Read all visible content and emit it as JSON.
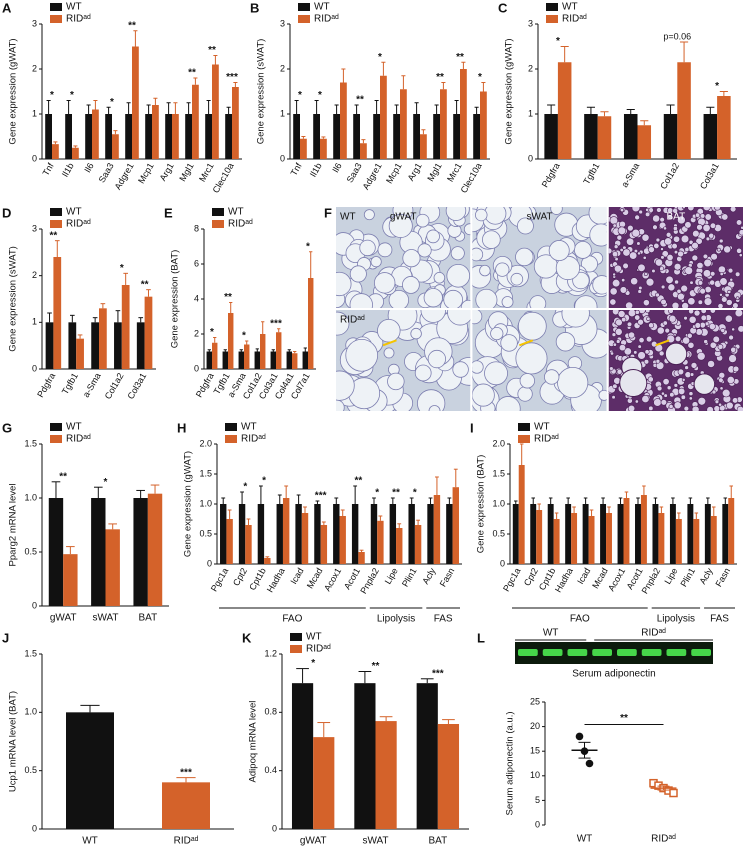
{
  "chart_data": [
    {
      "panel": "A",
      "type": "bar",
      "ylabel": "Gene expression (gWAT)",
      "categories": [
        "Tnf",
        "Il1b",
        "Il6",
        "Saa3",
        "Adgre1",
        "Mcp1",
        "Arg1",
        "Mgl1",
        "Mrc1",
        "Clec10a"
      ],
      "ylim": [
        0,
        3
      ],
      "yticks": [
        0,
        1,
        2,
        3
      ],
      "series": [
        {
          "name": "WT",
          "color": "#111111",
          "values": [
            1,
            1,
            1,
            1,
            1,
            1,
            1,
            1,
            1,
            1
          ],
          "errors": [
            0.3,
            0.3,
            0.2,
            0.15,
            0.25,
            0.2,
            0.25,
            0.25,
            0.3,
            0.15
          ]
        },
        {
          "name": "RIDᵃᵈ",
          "color": "#d4622a",
          "values": [
            0.33,
            0.25,
            1.1,
            0.55,
            2.5,
            1.2,
            1.0,
            1.65,
            2.1,
            1.6
          ],
          "errors": [
            0.05,
            0.04,
            0.2,
            0.08,
            0.35,
            0.15,
            0.25,
            0.15,
            0.2,
            0.1
          ],
          "significance": [
            "*",
            "*",
            null,
            "*",
            "**",
            null,
            null,
            "**",
            "**",
            "***"
          ]
        }
      ]
    },
    {
      "panel": "B",
      "type": "bar",
      "ylabel": "Gene expression (sWAT)",
      "categories": [
        "Tnf",
        "Il1b",
        "Il6",
        "Saa3",
        "Adgre1",
        "Mcp1",
        "Arg1",
        "Mgl1",
        "Mrc1",
        "Clec10a"
      ],
      "ylim": [
        0,
        3
      ],
      "yticks": [
        0,
        1,
        2,
        3
      ],
      "series": [
        {
          "name": "WT",
          "color": "#111111",
          "values": [
            1,
            1,
            1,
            1,
            1,
            1,
            1,
            1,
            1,
            1
          ],
          "errors": [
            0.3,
            0.3,
            0.2,
            0.2,
            0.3,
            0.2,
            0.25,
            0.2,
            0.3,
            0.15
          ]
        },
        {
          "name": "RIDᵃᵈ",
          "color": "#d4622a",
          "values": [
            0.45,
            0.45,
            1.7,
            0.35,
            1.85,
            1.55,
            0.55,
            1.55,
            2.0,
            1.5
          ],
          "errors": [
            0.05,
            0.04,
            0.3,
            0.08,
            0.3,
            0.3,
            0.1,
            0.15,
            0.15,
            0.2
          ],
          "significance": [
            "*",
            "*",
            null,
            "**",
            "*",
            null,
            null,
            "**",
            "**",
            "*"
          ]
        }
      ]
    },
    {
      "panel": "C",
      "type": "bar",
      "ylabel": "Gene expression (gWAT)",
      "categories": [
        "Pdgfra",
        "Tgfb1",
        "a-Sma",
        "Col1a2",
        "Col3a1"
      ],
      "ylim": [
        0,
        3
      ],
      "yticks": [
        0,
        1,
        2,
        3
      ],
      "series": [
        {
          "name": "WT",
          "color": "#111111",
          "values": [
            1,
            1,
            1,
            1,
            1
          ],
          "errors": [
            0.2,
            0.15,
            0.1,
            0.2,
            0.15
          ]
        },
        {
          "name": "RIDᵃᵈ",
          "color": "#d4622a",
          "values": [
            2.15,
            0.95,
            0.75,
            2.15,
            1.4
          ],
          "errors": [
            0.35,
            0.1,
            0.1,
            0.45,
            0.1
          ],
          "significance": [
            "*",
            null,
            null,
            "p=0.06",
            "*"
          ]
        }
      ]
    },
    {
      "panel": "D",
      "type": "bar",
      "ylabel": "Gene expression (sWAT)",
      "categories": [
        "Pdgfra",
        "Tgfb1",
        "a-Sma",
        "Col1a2",
        "Col3a1"
      ],
      "ylim": [
        0,
        3
      ],
      "yticks": [
        0,
        1,
        2,
        3
      ],
      "series": [
        {
          "name": "WT",
          "color": "#111111",
          "values": [
            1,
            1,
            1,
            1,
            1
          ],
          "errors": [
            0.2,
            0.15,
            0.1,
            0.25,
            0.1
          ]
        },
        {
          "name": "RIDᵃᵈ",
          "color": "#d4622a",
          "values": [
            2.4,
            0.65,
            1.3,
            1.8,
            1.55
          ],
          "errors": [
            0.35,
            0.08,
            0.1,
            0.25,
            0.15
          ],
          "significance": [
            "**",
            null,
            null,
            "*",
            "**"
          ]
        }
      ]
    },
    {
      "panel": "E",
      "type": "bar",
      "ylabel": "Gene expression (BAT)",
      "categories": [
        "Pdgfra",
        "Tgfb1",
        "a-Sma",
        "Col1a2",
        "Col3a1",
        "Col4a1",
        "Col7a1"
      ],
      "ylim": [
        0,
        8
      ],
      "yticks": [
        0,
        2,
        4,
        6,
        8
      ],
      "series": [
        {
          "name": "WT",
          "color": "#111111",
          "values": [
            1,
            1,
            1,
            1,
            1,
            1,
            1
          ],
          "errors": [
            0.1,
            0.1,
            0.1,
            0.15,
            0.1,
            0.1,
            0.2
          ]
        },
        {
          "name": "RIDᵃᵈ",
          "color": "#d4622a",
          "values": [
            1.5,
            3.2,
            1.4,
            2.0,
            2.1,
            0.9,
            5.2
          ],
          "errors": [
            0.3,
            0.6,
            0.2,
            0.7,
            0.2,
            0.1,
            1.5
          ],
          "significance": [
            "*",
            "**",
            "*",
            null,
            "***",
            null,
            "*"
          ]
        }
      ]
    },
    {
      "panel": "F",
      "type": "image",
      "genotypes": [
        "WT",
        "RIDᵃᵈ"
      ],
      "tissues": [
        "gWAT",
        "sWAT",
        "BAT"
      ]
    },
    {
      "panel": "G",
      "type": "bar",
      "ylabel": "Pparg2 mRNA level",
      "categories": [
        "gWAT",
        "sWAT",
        "BAT"
      ],
      "ylim": [
        0,
        1.5
      ],
      "yticks": [
        0,
        0.5,
        {
          "value": 1,
          "label": "1.0"
        },
        1.5
      ],
      "series": [
        {
          "name": "WT",
          "color": "#111111",
          "values": [
            1,
            1,
            1
          ],
          "errors": [
            0.15,
            0.1,
            0.07
          ]
        },
        {
          "name": "RIDᵃᵈ",
          "color": "#d4622a",
          "values": [
            0.48,
            0.71,
            1.04
          ],
          "errors": [
            0.07,
            0.05,
            0.08
          ],
          "significance": [
            "**",
            "*",
            null
          ]
        }
      ]
    },
    {
      "panel": "H",
      "type": "bar",
      "ylabel": "Gene expression (gWAT)",
      "categories": [
        "Pgc1a",
        "Cpt2",
        "Cpt1b",
        "Hadha",
        "Icad",
        "Mcad",
        "Acox1",
        "Acot1",
        "Pnpla2",
        "Lipe",
        "Plin1",
        "Acly",
        "Fasn"
      ],
      "ylim": [
        0,
        2
      ],
      "yticks": [
        0,
        0.5,
        {
          "value": 1,
          "label": "1.0"
        },
        1.5,
        {
          "value": 2,
          "label": "2.0"
        }
      ],
      "groups": [
        {
          "label": "FAO",
          "categories": [
            "Pgc1a",
            "Cpt2",
            "Cpt1b",
            "Hadha",
            "Icad",
            "Mcad",
            "Acox1",
            "Acot1"
          ]
        },
        {
          "label": "Lipolysis",
          "categories": [
            "Pnpla2",
            "Lipe",
            "Plin1"
          ]
        },
        {
          "label": "FAS",
          "categories": [
            "Acly",
            "Fasn"
          ]
        }
      ],
      "series": [
        {
          "name": "WT",
          "color": "#111111",
          "values": [
            1,
            1,
            1,
            1,
            1,
            1,
            1,
            1,
            1,
            1,
            1,
            1,
            1
          ],
          "errors": [
            0.1,
            0.2,
            0.3,
            0.15,
            0.15,
            0.05,
            0.1,
            0.3,
            0.1,
            0.1,
            0.1,
            0.1,
            0.1
          ]
        },
        {
          "name": "RIDᵃᵈ",
          "color": "#d4622a",
          "values": [
            0.75,
            0.65,
            0.1,
            1.1,
            0.85,
            0.65,
            0.8,
            0.2,
            0.72,
            0.6,
            0.65,
            1.15,
            1.28
          ],
          "errors": [
            0.15,
            0.1,
            0.02,
            0.2,
            0.1,
            0.05,
            0.1,
            0.03,
            0.08,
            0.07,
            0.08,
            0.3,
            0.3
          ],
          "significance": [
            null,
            "*",
            "*",
            null,
            null,
            "***",
            null,
            "**",
            "*",
            "**",
            "*",
            null,
            null
          ]
        }
      ]
    },
    {
      "panel": "I",
      "type": "bar",
      "ylabel": "Gene expression (BAT)",
      "categories": [
        "Pgc1a",
        "Cpt2",
        "Cpt1b",
        "Hadha",
        "Icad",
        "Mcad",
        "Acox1",
        "Acot1",
        "Pnpla2",
        "Lipe",
        "Plin1",
        "Acly",
        "Fasn"
      ],
      "ylim": [
        0,
        2
      ],
      "yticks": [
        0,
        0.5,
        {
          "value": 1,
          "label": "1.0"
        },
        1.5,
        {
          "value": 2,
          "label": "2.0"
        }
      ],
      "groups": [
        {
          "label": "FAO",
          "categories": [
            "Pgc1a",
            "Cpt2",
            "Cpt1b",
            "Hadha",
            "Icad",
            "Mcad",
            "Acox1",
            "Acot1"
          ]
        },
        {
          "label": "Lipolysis",
          "categories": [
            "Pnpla2",
            "Lipe",
            "Plin1"
          ]
        },
        {
          "label": "FAS",
          "categories": [
            "Acly",
            "Fasn"
          ]
        }
      ],
      "series": [
        {
          "name": "WT",
          "color": "#111111",
          "values": [
            1,
            1,
            1,
            1,
            1,
            1,
            1,
            1,
            1,
            1,
            1,
            1,
            1
          ],
          "errors": [
            0.05,
            0.1,
            0.1,
            0.1,
            0.1,
            0.1,
            0.1,
            0.1,
            0.1,
            0.1,
            0.1,
            0.1,
            0.1
          ]
        },
        {
          "name": "RIDᵃᵈ",
          "color": "#d4622a",
          "values": [
            1.65,
            0.9,
            0.75,
            0.85,
            0.8,
            0.85,
            1.1,
            1.15,
            0.85,
            0.75,
            0.75,
            0.8,
            1.1
          ],
          "errors": [
            0.35,
            0.1,
            0.1,
            0.1,
            0.1,
            0.1,
            0.1,
            0.15,
            0.1,
            0.1,
            0.1,
            0.15,
            0.2
          ]
        }
      ]
    },
    {
      "panel": "J",
      "type": "bar",
      "ylabel": "Ucp1 mRNA level (BAT)",
      "categories": [
        "WT",
        "RIDᵃᵈ"
      ],
      "ylim": [
        0,
        1.5
      ],
      "yticks": [
        0,
        0.5,
        {
          "value": 1,
          "label": "1.0"
        },
        1.5
      ],
      "values": [
        1,
        0.4
      ],
      "errors": [
        0.06,
        0.04
      ],
      "colors": [
        "#111111",
        "#d4622a"
      ],
      "significance": [
        null,
        "***"
      ]
    },
    {
      "panel": "K",
      "type": "bar",
      "ylabel": "Adipoq mRNA level",
      "categories": [
        "gWAT",
        "sWAT",
        "BAT"
      ],
      "ylim": [
        0,
        1.2
      ],
      "yticks": [
        0,
        0.4,
        0.8,
        1.2
      ],
      "series": [
        {
          "name": "WT",
          "color": "#111111",
          "values": [
            1,
            1,
            1
          ],
          "errors": [
            0.1,
            0.08,
            0.03
          ]
        },
        {
          "name": "RIDᵃᵈ",
          "color": "#d4622a",
          "values": [
            0.63,
            0.74,
            0.72
          ],
          "errors": [
            0.1,
            0.03,
            0.03
          ],
          "significance": [
            "*",
            "**",
            "***"
          ]
        }
      ]
    },
    {
      "panel": "L",
      "type": "dot",
      "gel_labels": [
        "WT",
        "RIDᵃᵈ"
      ],
      "gel_title": "Serum adiponectin",
      "ylabel": "Serum adiponectin (a.u.)",
      "ylim": [
        0,
        25
      ],
      "yticks": [
        0,
        5,
        10,
        15,
        20,
        25
      ],
      "significance": "**",
      "groups": [
        {
          "name": "WT",
          "color": "#111111",
          "marker": "circle",
          "points": [
            18,
            15,
            12.5
          ],
          "mean": 15.2,
          "sem": 1.6
        },
        {
          "name": "RIDᵃᵈ",
          "color": "#d4622a",
          "marker": "square",
          "points": [
            8.5,
            8,
            7.5,
            7,
            6.5
          ],
          "mean": 7.5,
          "sem": 0.4
        }
      ]
    }
  ]
}
